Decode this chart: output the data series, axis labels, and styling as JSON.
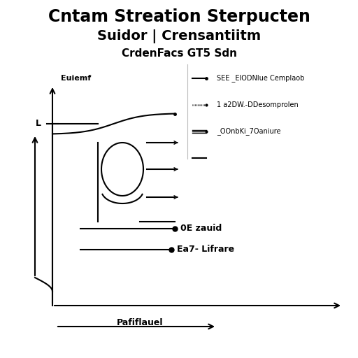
{
  "title_line1": "Cntam Streation Sterpucten",
  "title_line2": "Suidor | Crensantiitm",
  "title_line3": "CrdenFacs GT5 Sdn",
  "ylabel": "Euiemf",
  "xlabel": "Pafiflauel",
  "y_level": "L",
  "legend_items": [
    {
      "label": "SEE _ElODNlue Cemplaob"
    },
    {
      "label": "1 a2DW.-DDesomprolen"
    },
    {
      "label": "_OOnbKi_7Oaniure"
    },
    {
      "label": ""
    },
    {
      "label": "0E zauid"
    },
    {
      "label": "Ea7- Lifrare"
    }
  ],
  "bg_color": "#ffffff",
  "line_color": "#000000",
  "title_fontsize": 17,
  "subtitle_fontsize": 14,
  "title3_fontsize": 11
}
